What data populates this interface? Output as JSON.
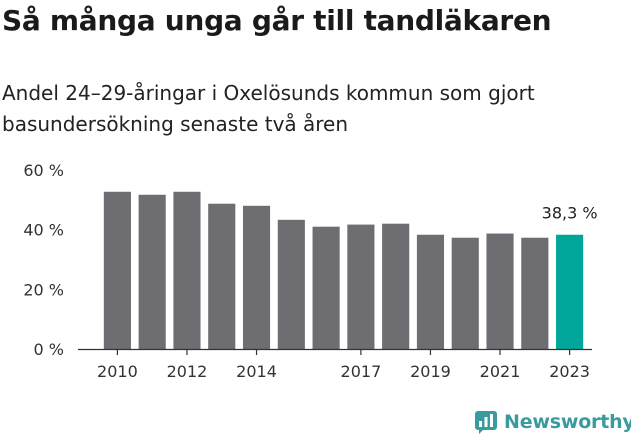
{
  "title": "Så många unga går till tandläkaren",
  "subtitle": "Andel 24–29-åringar i Oxelösunds kommun som gjort basundersökning senaste två åren",
  "brand": {
    "name": "Newsworthy",
    "icon": "newsworthy-chart-icon"
  },
  "colors": {
    "bar": "#6e6d72",
    "highlight": "#00a699",
    "axis": "#333333",
    "grid": "#cfcfcf",
    "brand": "#3a9b9e"
  },
  "chart_data": {
    "type": "bar",
    "title": "Så många unga går till tandläkaren",
    "subtitle": "Andel 24–29-åringar i Oxelösunds kommun som gjort basundersökning senaste två åren",
    "xlabel": "",
    "ylabel": "",
    "categories": [
      "2010",
      "2011",
      "2012",
      "2013",
      "2014",
      "2015",
      "2016",
      "2017",
      "2018",
      "2019",
      "2020",
      "2021",
      "2022",
      "2023"
    ],
    "values": [
      52.7,
      51.7,
      52.7,
      48.7,
      48.0,
      43.3,
      41.0,
      41.7,
      42.0,
      38.3,
      37.3,
      38.7,
      37.3,
      38.3
    ],
    "ylim": [
      0,
      60
    ],
    "yticks": [
      0,
      20,
      40,
      60
    ],
    "ytick_labels": [
      "0 %",
      "20 %",
      "40 %",
      "60 %"
    ],
    "xtick_labels": [
      "2010",
      "2012",
      "2014",
      "2017",
      "2019",
      "2021",
      "2023"
    ],
    "highlight_index": 13,
    "annotation": "38,3 %",
    "grid": false,
    "legend": "none"
  }
}
